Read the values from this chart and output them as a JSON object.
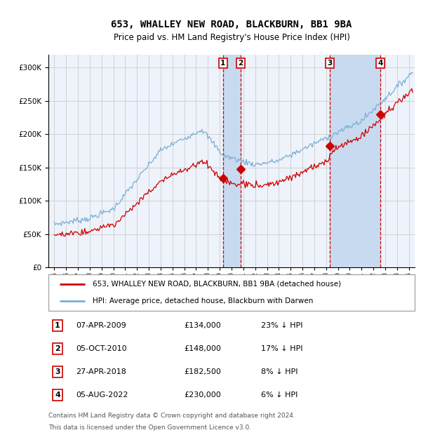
{
  "title": "653, WHALLEY NEW ROAD, BLACKBURN, BB1 9BA",
  "subtitle": "Price paid vs. HM Land Registry's House Price Index (HPI)",
  "legend_line1": "653, WHALLEY NEW ROAD, BLACKBURN, BB1 9BA (detached house)",
  "legend_line2": "HPI: Average price, detached house, Blackburn with Darwen",
  "footer1": "Contains HM Land Registry data © Crown copyright and database right 2024.",
  "footer2": "This data is licensed under the Open Government Licence v3.0.",
  "transactions": [
    {
      "num": 1,
      "date": "07-APR-2009",
      "price": 134000,
      "pct": "23%",
      "dir": "↓",
      "date_decimal": 2009.27
    },
    {
      "num": 2,
      "date": "05-OCT-2010",
      "price": 148000,
      "pct": "17%",
      "dir": "↓",
      "date_decimal": 2010.76
    },
    {
      "num": 3,
      "date": "27-APR-2018",
      "price": 182500,
      "pct": "8%",
      "dir": "↓",
      "date_decimal": 2018.32
    },
    {
      "num": 4,
      "date": "05-AUG-2022",
      "price": 230000,
      "pct": "6%",
      "dir": "↓",
      "date_decimal": 2022.59
    }
  ],
  "red_line_color": "#cc0000",
  "blue_line_color": "#7ab0d4",
  "background_color": "#ffffff",
  "plot_bg_color": "#eef2fa",
  "grid_color": "#cccccc",
  "shade_color": "#c8daf0",
  "ylim": [
    0,
    320000
  ],
  "xlim_start": 1994.5,
  "xlim_end": 2025.5
}
